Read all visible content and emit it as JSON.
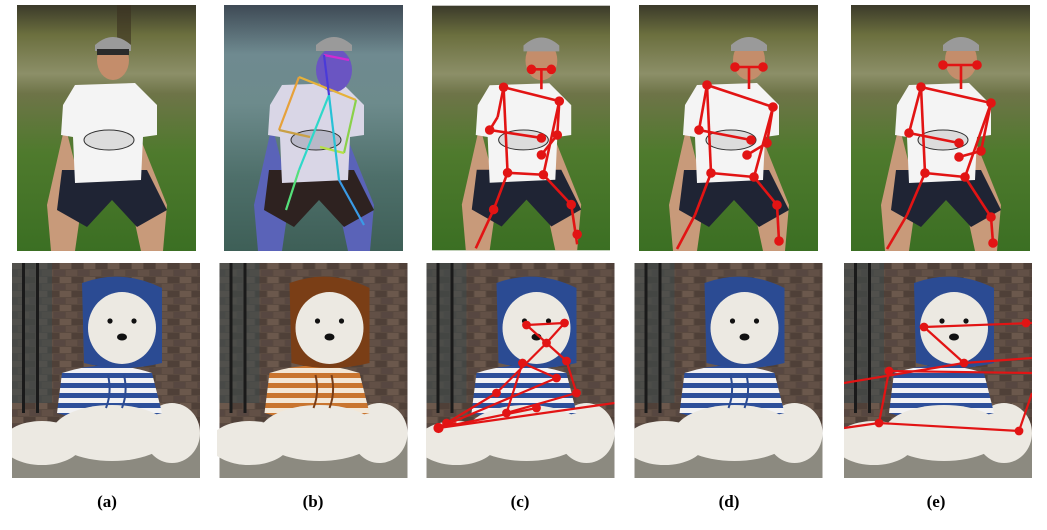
{
  "figure": {
    "labels": [
      "(a)",
      "(b)",
      "(c)",
      "(d)",
      "(e)"
    ]
  },
  "colors": {
    "skeleton": "#e21414",
    "grass_top": "#5f6a35",
    "grass_bottom": "#3f7c2a",
    "shirt": "#f3f3f3",
    "shorts": "#1e2333",
    "bear_fur": "#ece9e2",
    "hoodie_blue": "#2b4b93",
    "hoodie_brown": "#7a3e16",
    "stripe_orange": "#cf7a35",
    "brick": "#5b4a40"
  }
}
